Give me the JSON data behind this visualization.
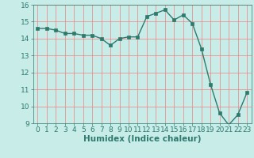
{
  "x": [
    0,
    1,
    2,
    3,
    4,
    5,
    6,
    7,
    8,
    9,
    10,
    11,
    12,
    13,
    14,
    15,
    16,
    17,
    18,
    19,
    20,
    21,
    22,
    23
  ],
  "y": [
    14.6,
    14.6,
    14.5,
    14.3,
    14.3,
    14.2,
    14.2,
    14.0,
    13.6,
    14.0,
    14.1,
    14.1,
    15.3,
    15.5,
    15.7,
    15.1,
    15.4,
    14.9,
    13.4,
    11.3,
    9.6,
    8.9,
    9.5,
    10.8
  ],
  "line_color": "#2d7a6e",
  "marker": "s",
  "marker_size": 2.5,
  "bg_color": "#c8ece8",
  "grid_color": "#f08080",
  "xlabel": "Humidex (Indice chaleur)",
  "xlabel_color": "#2d7a6e",
  "xlim": [
    -0.5,
    23.5
  ],
  "ylim": [
    9,
    16
  ],
  "yticks": [
    9,
    10,
    11,
    12,
    13,
    14,
    15,
    16
  ],
  "xticks": [
    0,
    1,
    2,
    3,
    4,
    5,
    6,
    7,
    8,
    9,
    10,
    11,
    12,
    13,
    14,
    15,
    16,
    17,
    18,
    19,
    20,
    21,
    22,
    23
  ],
  "tick_color": "#2d7a6e",
  "label_fontsize": 6.5,
  "xlabel_fontsize": 7.5,
  "linewidth": 1.0
}
